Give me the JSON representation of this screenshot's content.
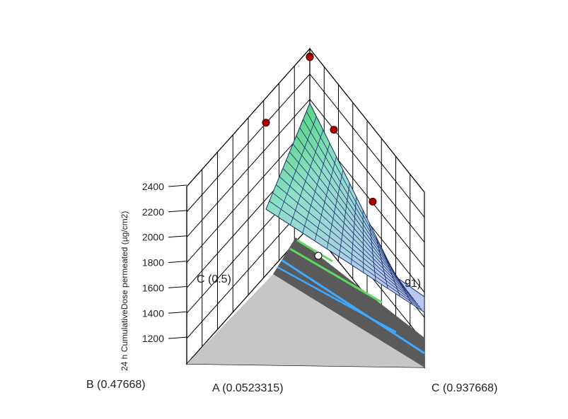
{
  "chart_data": {
    "type": "surface",
    "title": "",
    "zlabel": "24 h CumulativeDose permeated (µg/cm2)",
    "z_ticks": [
      1200,
      1400,
      1600,
      1800,
      2000,
      2200,
      2400
    ],
    "z_range": [
      1000,
      2400
    ],
    "vertex_labels": {
      "left": "B (0.47668)",
      "front": "A (0.0523315)",
      "right": "C (0.937668)",
      "inner_c": "C (0.5)",
      "inner_fragment": "91)"
    },
    "design_points": [
      {
        "label": "apex-top",
        "z": 2400
      },
      {
        "label": "apex-2",
        "z": 2250
      },
      {
        "label": "left-edge",
        "z": 1800
      },
      {
        "label": "center",
        "z": 1900
      },
      {
        "label": "right-edge",
        "z": 1500
      }
    ],
    "colors": {
      "surface_high": "#4fd36b",
      "surface_mid": "#8fd7e0",
      "surface_low": "#b7c9f2",
      "floor": "#c8c8c8",
      "contour_band": "#555555",
      "contour_green": "#5fd85f",
      "contour_blue": "#3fa9ff",
      "point": "#b00000",
      "grid": "#000000"
    }
  }
}
